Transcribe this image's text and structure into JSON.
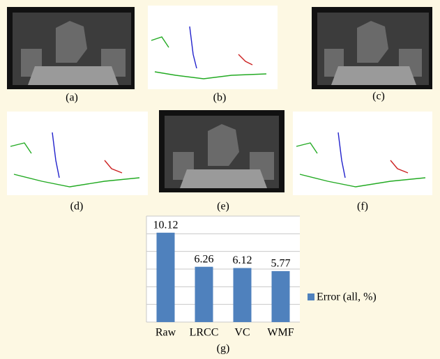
{
  "panels": [
    "(a)",
    "(b)",
    "(c)",
    "(d)",
    "(e)",
    "(f)",
    "(g)"
  ],
  "chart_data": {
    "type": "bar",
    "categories": [
      "Raw",
      "LRCC",
      "VC",
      "WMF"
    ],
    "series": [
      {
        "name": "Error (all, %)",
        "color": "#4f81bd",
        "values": [
          10.12,
          6.26,
          6.12,
          5.77
        ]
      }
    ],
    "ylim": [
      0,
      12
    ],
    "yticks": [
      0,
      2,
      4,
      6,
      8,
      10,
      12
    ],
    "grid": true
  }
}
